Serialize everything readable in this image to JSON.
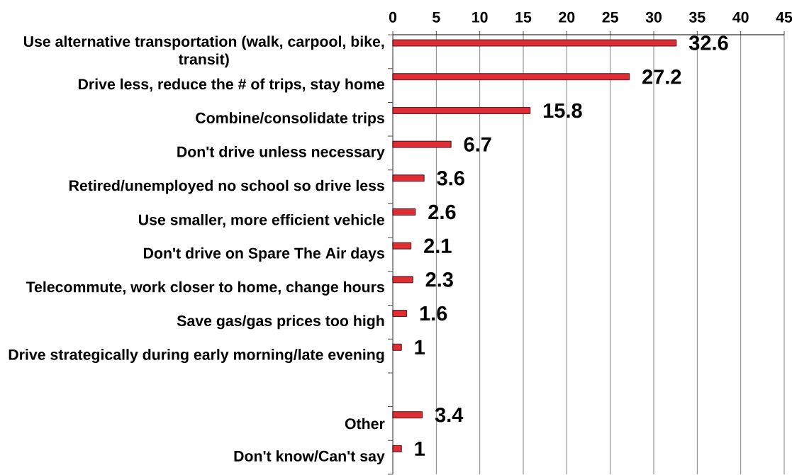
{
  "chart_data": {
    "type": "bar",
    "orientation": "horizontal",
    "categories": [
      "Use alternative transportation (walk, carpool, bike, transit)",
      "Drive less, reduce the # of trips, stay home",
      "Combine/consolidate trips",
      "Don't drive unless necessary",
      "Retired/unemployed no school so drive less",
      "Use smaller, more efficient vehicle",
      "Don't drive on Spare The Air days",
      "Telecommute, work closer to home, change hours",
      "Save gas/gas prices too high",
      "Drive strategically during early morning/late evening",
      null,
      "Other",
      "Don't know/Can't say"
    ],
    "values": [
      32.6,
      27.2,
      15.8,
      6.7,
      3.6,
      2.6,
      2.1,
      2.3,
      1.6,
      1,
      null,
      3.4,
      1
    ],
    "color": "#e02d35",
    "xlim": [
      0,
      45
    ],
    "xticks": [
      0,
      5,
      10,
      15,
      20,
      25,
      30,
      35,
      40,
      45
    ],
    "grid": "x",
    "data_labels": true
  }
}
